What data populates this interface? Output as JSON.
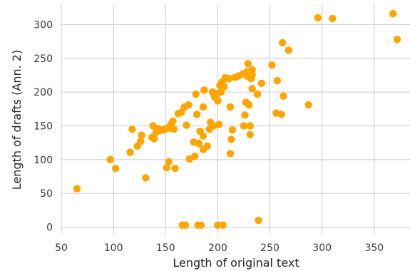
{
  "chart_data": {
    "type": "scatter",
    "title": "",
    "xlabel": "Length of original text",
    "ylabel": "Length of drafts (Ann. 2)",
    "xlim": [
      50,
      385
    ],
    "ylim": [
      -10,
      330
    ],
    "xticks": [
      50,
      100,
      150,
      200,
      250,
      300,
      350
    ],
    "yticks": [
      0,
      50,
      100,
      150,
      200,
      250,
      300
    ],
    "grid": true,
    "point_color": "#ffa500",
    "series": [
      {
        "points": [
          [
            65,
            57
          ],
          [
            97,
            100
          ],
          [
            102,
            87
          ],
          [
            116,
            111
          ],
          [
            118,
            145
          ],
          [
            123,
            120
          ],
          [
            126,
            127
          ],
          [
            127,
            136
          ],
          [
            131,
            73
          ],
          [
            137,
            133
          ],
          [
            138,
            150
          ],
          [
            139,
            131
          ],
          [
            141,
            141
          ],
          [
            143,
            146
          ],
          [
            145,
            143
          ],
          [
            148,
            144
          ],
          [
            150,
            145
          ],
          [
            151,
            88
          ],
          [
            152,
            147
          ],
          [
            153,
            97
          ],
          [
            155,
            152
          ],
          [
            156,
            146
          ],
          [
            157,
            157
          ],
          [
            158,
            145
          ],
          [
            159,
            87
          ],
          [
            162,
            168
          ],
          [
            165,
            170
          ],
          [
            166,
            3
          ],
          [
            168,
            178
          ],
          [
            169,
            3
          ],
          [
            170,
            151
          ],
          [
            172,
            181
          ],
          [
            173,
            101
          ],
          [
            177,
            126
          ],
          [
            178,
            105
          ],
          [
            179,
            197
          ],
          [
            180,
            167
          ],
          [
            181,
            3
          ],
          [
            182,
            124
          ],
          [
            183,
            142
          ],
          [
            184,
            3
          ],
          [
            186,
            135
          ],
          [
            186,
            115
          ],
          [
            186,
            178
          ],
          [
            187,
            203
          ],
          [
            190,
            120
          ],
          [
            192,
            145
          ],
          [
            193,
            155
          ],
          [
            195,
            200
          ],
          [
            196,
            150
          ],
          [
            197,
            193
          ],
          [
            198,
            198
          ],
          [
            199,
            190
          ],
          [
            200,
            3
          ],
          [
            200,
            187
          ],
          [
            201,
            152
          ],
          [
            202,
            210
          ],
          [
            203,
            200
          ],
          [
            204,
            215
          ],
          [
            205,
            3
          ],
          [
            206,
            208
          ],
          [
            207,
            221
          ],
          [
            209,
            220
          ],
          [
            211,
            220
          ],
          [
            212,
            178
          ],
          [
            212,
            109
          ],
          [
            213,
            130
          ],
          [
            214,
            144
          ],
          [
            217,
            222
          ],
          [
            220,
            224
          ],
          [
            224,
            227
          ],
          [
            225,
            150
          ],
          [
            226,
            166
          ],
          [
            227,
            185
          ],
          [
            228,
            230
          ],
          [
            228,
            224
          ],
          [
            229,
            242
          ],
          [
            230,
            181
          ],
          [
            231,
            150
          ],
          [
            231,
            137
          ],
          [
            232,
            220
          ],
          [
            233,
            226
          ],
          [
            233,
            205
          ],
          [
            233,
            233
          ],
          [
            238,
            197
          ],
          [
            239,
            10
          ],
          [
            242,
            213
          ],
          [
            252,
            240
          ],
          [
            256,
            169
          ],
          [
            257,
            217
          ],
          [
            261,
            167
          ],
          [
            262,
            273
          ],
          [
            263,
            194
          ],
          [
            268,
            262
          ],
          [
            287,
            181
          ],
          [
            296,
            310
          ],
          [
            310,
            309
          ],
          [
            368,
            316
          ],
          [
            372,
            278
          ]
        ]
      }
    ]
  }
}
